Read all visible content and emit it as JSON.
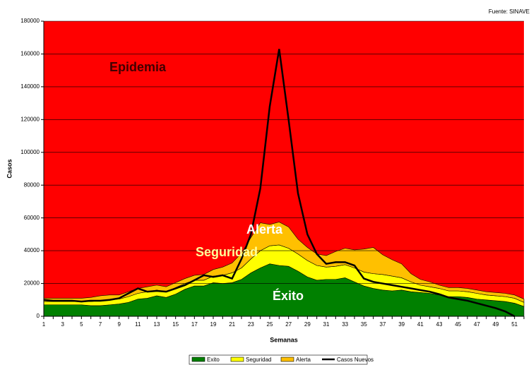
{
  "chart_data": {
    "type": "stacked-area-line",
    "source": "Fuente: SINAVE",
    "x_label": "Semanas",
    "y_label": "Casos",
    "categories": [
      "1",
      null,
      "3",
      null,
      "5",
      null,
      "7",
      null,
      "9",
      null,
      "11",
      null,
      "13",
      null,
      "15",
      null,
      "17",
      null,
      "19",
      null,
      "21",
      null,
      "23",
      null,
      "25",
      null,
      "27",
      null,
      "29",
      null,
      "31",
      null,
      "33",
      null,
      "35",
      null,
      "37",
      null,
      "39",
      null,
      "41",
      null,
      "43",
      null,
      "45",
      null,
      "47",
      null,
      "49",
      null,
      "51",
      null
    ],
    "plot_background": "#ff0000",
    "series": [
      {
        "name": "Exito",
        "color": "#008000",
        "kind": "area",
        "values": [
          7000,
          7000,
          7000,
          7000,
          7000,
          6500,
          6500,
          7000,
          7500,
          8500,
          10500,
          11000,
          12500,
          11500,
          13500,
          16500,
          18500,
          18500,
          20500,
          20000,
          20500,
          22500,
          26500,
          29500,
          32000,
          31000,
          30500,
          27500,
          24000,
          22000,
          22500,
          22500,
          23500,
          21000,
          18500,
          17000,
          16000,
          15500,
          16000,
          15000,
          14500,
          14000,
          13000,
          12000,
          12000,
          11500,
          10500,
          10000,
          9500,
          9000,
          8000,
          6000
        ]
      },
      {
        "name": "Seguridad",
        "color": "#ffff00",
        "kind": "area",
        "values": [
          2000,
          2000,
          2000,
          2000,
          2000,
          2500,
          3000,
          3000,
          3000,
          3500,
          3500,
          4000,
          3500,
          3500,
          4000,
          3500,
          3500,
          3500,
          4000,
          5000,
          6000,
          7000,
          8500,
          10500,
          11000,
          12500,
          11000,
          10500,
          10000,
          9000,
          7500,
          8000,
          8000,
          8500,
          8500,
          9000,
          9500,
          9000,
          7500,
          6000,
          4500,
          4000,
          4000,
          3500,
          3500,
          3500,
          3500,
          3000,
          3000,
          3000,
          3000,
          2500
        ]
      },
      {
        "name": "Alerta",
        "color": "#ffc000",
        "kind": "area",
        "values": [
          2000,
          2000,
          2000,
          2000,
          2000,
          2500,
          3000,
          3000,
          2500,
          3000,
          3000,
          3000,
          3000,
          3000,
          3000,
          3000,
          3000,
          3500,
          4000,
          5000,
          6000,
          9000,
          13000,
          17000,
          13000,
          14000,
          13000,
          9000,
          8000,
          7000,
          7000,
          9000,
          10000,
          11000,
          14000,
          16000,
          12000,
          10000,
          8500,
          5000,
          3500,
          3000,
          2000,
          2000,
          2000,
          2000,
          2000,
          2000,
          2000,
          2000,
          2000,
          2000
        ]
      },
      {
        "name": "Casos Nuevos",
        "color": "#000000",
        "kind": "line",
        "values": [
          10000,
          9500,
          9500,
          9500,
          9000,
          9500,
          9500,
          10000,
          11000,
          14000,
          17000,
          15000,
          15500,
          15000,
          17000,
          19000,
          22000,
          25000,
          24000,
          25000,
          23000,
          35000,
          50000,
          78000,
          128000,
          163000,
          120000,
          75000,
          50000,
          38000,
          32000,
          33000,
          33000,
          31000,
          23000,
          21000,
          20000,
          19000,
          18000,
          17000,
          16000,
          15000,
          13500,
          11500,
          10500,
          9500,
          8000,
          6500,
          5000,
          3000,
          0,
          null
        ]
      }
    ],
    "annotations": [
      "Epidemia",
      "Alerta",
      "Seguridad",
      "Éxito"
    ],
    "ylim": [
      0,
      180000
    ],
    "yticks": [
      0,
      20000,
      40000,
      60000,
      80000,
      100000,
      120000,
      140000,
      160000,
      180000
    ],
    "grid": true,
    "legend": "bottom"
  }
}
